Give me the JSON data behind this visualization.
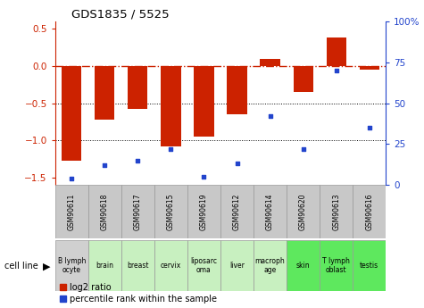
{
  "title": "GDS1835 / 5525",
  "samples": [
    "GSM90611",
    "GSM90618",
    "GSM90617",
    "GSM90615",
    "GSM90619",
    "GSM90612",
    "GSM90614",
    "GSM90620",
    "GSM90613",
    "GSM90616"
  ],
  "cell_lines": [
    "B lymph\nocyte",
    "brain",
    "breast",
    "cervix",
    "liposarc\noma",
    "liver",
    "macroph\nage",
    "skin",
    "T lymph\noblast",
    "testis"
  ],
  "cell_line_colors": [
    "#d0d0d0",
    "#c8f0c0",
    "#c8f0c0",
    "#c8f0c0",
    "#c8f0c0",
    "#c8f0c0",
    "#c8f0c0",
    "#5ee85e",
    "#5ee85e",
    "#5ee85e"
  ],
  "gsm_box_color": "#c8c8c8",
  "log2_ratio": [
    -1.28,
    -0.72,
    -0.58,
    -1.08,
    -0.95,
    -0.65,
    0.1,
    -0.35,
    0.38,
    -0.05
  ],
  "percentile_rank": [
    4,
    12,
    15,
    22,
    5,
    13,
    42,
    22,
    70,
    35
  ],
  "bar_color": "#cc2200",
  "dot_color": "#2244cc",
  "bar_width": 0.6,
  "ylim_left": [
    -1.6,
    0.6
  ],
  "ylim_right": [
    0,
    100
  ],
  "yticks_left": [
    -1.5,
    -1.0,
    -0.5,
    0.0,
    0.5
  ],
  "yticks_right": [
    0,
    25,
    50,
    75,
    100
  ],
  "dotline_y": [
    -0.5,
    -1.0
  ],
  "left_axis_color": "#cc2200",
  "right_axis_color": "#2244cc",
  "legend_red_label": "log2 ratio",
  "legend_blue_label": "percentile rank within the sample",
  "cell_line_label": "cell line"
}
